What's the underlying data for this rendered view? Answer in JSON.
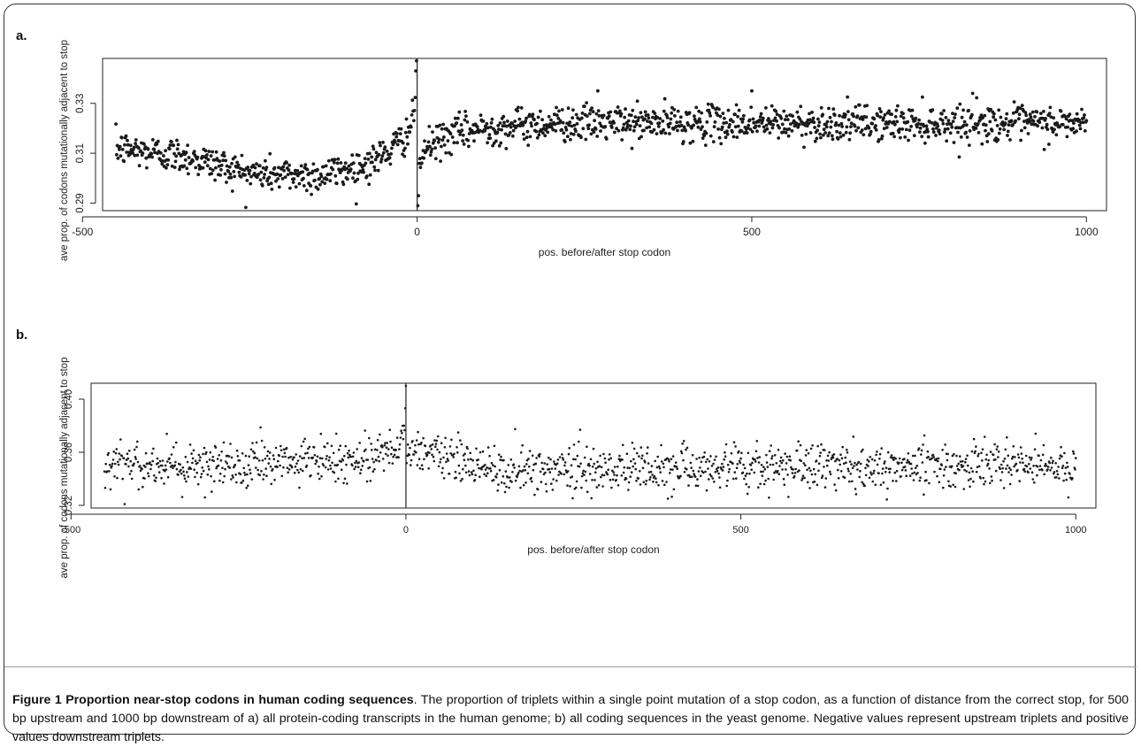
{
  "colors": {
    "points": "#1a1a1a",
    "axis": "#222222",
    "frame_border": "#333333"
  },
  "chart_data": [
    {
      "type": "scatter",
      "panel_label": "a.",
      "xlabel": "pos. before/after stop codon",
      "ylabel": "ave prop. of codons mutationally adjacent to stop",
      "xlim": [
        -450,
        1000
      ],
      "ylim": [
        0.287,
        0.348
      ],
      "x_ticks": [
        -500,
        0,
        500,
        1000
      ],
      "y_ticks": [
        0.29,
        0.31,
        0.33
      ],
      "x_tick_labels": [
        "-500",
        "0",
        "500",
        "1000"
      ],
      "y_tick_labels": [
        "0.29",
        "0.31",
        "0.33"
      ],
      "vertical_line_x": 0,
      "grid": false,
      "series_profile": {
        "upstream": [
          [
            -450,
            0.312
          ],
          [
            -350,
            0.309
          ],
          [
            -250,
            0.302
          ],
          [
            -150,
            0.301
          ],
          [
            -80,
            0.305
          ],
          [
            -40,
            0.311
          ],
          [
            -15,
            0.318
          ],
          [
            -5,
            0.324
          ],
          [
            -1,
            0.333
          ]
        ],
        "downstream": [
          [
            0,
            0.297
          ],
          [
            3,
            0.305
          ],
          [
            10,
            0.311
          ],
          [
            30,
            0.315
          ],
          [
            60,
            0.318
          ],
          [
            100,
            0.32
          ],
          [
            200,
            0.322
          ],
          [
            1000,
            0.322
          ]
        ],
        "noise_sd": 0.0035,
        "extremes": [
          [
            -1,
            0.347
          ],
          [
            -2,
            0.343
          ],
          [
            1,
            0.289
          ],
          [
            2,
            0.293
          ],
          [
            270,
            0.335
          ],
          [
            830,
            0.334
          ],
          [
            500,
            0.335
          ]
        ]
      }
    },
    {
      "type": "scatter",
      "panel_label": "b.",
      "xlabel": "pos. before/after stop codon",
      "ylabel": "ave prop. of codons mutationally adjacent to stop",
      "xlim": [
        -450,
        1000
      ],
      "ylim": [
        0.318,
        0.412
      ],
      "x_ticks": [
        -500,
        0,
        500,
        1000
      ],
      "y_ticks": [
        0.32,
        0.36,
        0.4
      ],
      "x_tick_labels": [
        "-500",
        "0",
        "500",
        "1000"
      ],
      "y_tick_labels": [
        "0.32",
        "0.36",
        "0.40"
      ],
      "vertical_line_x": 0,
      "grid": false,
      "series_profile": {
        "upstream": [
          [
            -450,
            0.352
          ],
          [
            -300,
            0.35
          ],
          [
            -150,
            0.352
          ],
          [
            -60,
            0.356
          ],
          [
            -20,
            0.362
          ],
          [
            -8,
            0.37
          ],
          [
            -1,
            0.386
          ]
        ],
        "downstream": [
          [
            0,
            0.36
          ],
          [
            50,
            0.358
          ],
          [
            100,
            0.35
          ],
          [
            150,
            0.345
          ],
          [
            250,
            0.348
          ],
          [
            1000,
            0.35
          ]
        ],
        "noise_sd": 0.0085,
        "extremes": [
          [
            0,
            0.41
          ],
          [
            -420,
            0.321
          ],
          [
            -300,
            0.326
          ],
          [
            940,
            0.374
          ]
        ]
      }
    }
  ],
  "caption": {
    "title": "Figure 1 Proportion near-stop codons in human coding sequences",
    "body": ". The proportion of triplets within a single point mutation of a stop codon, as a function of distance from the correct stop, for 500 bp upstream and 1000 bp downstream of a) all protein-coding transcripts in the human genome; b) all coding sequences in the yeast genome. Negative values represent upstream triplets and positive values downstream triplets."
  }
}
